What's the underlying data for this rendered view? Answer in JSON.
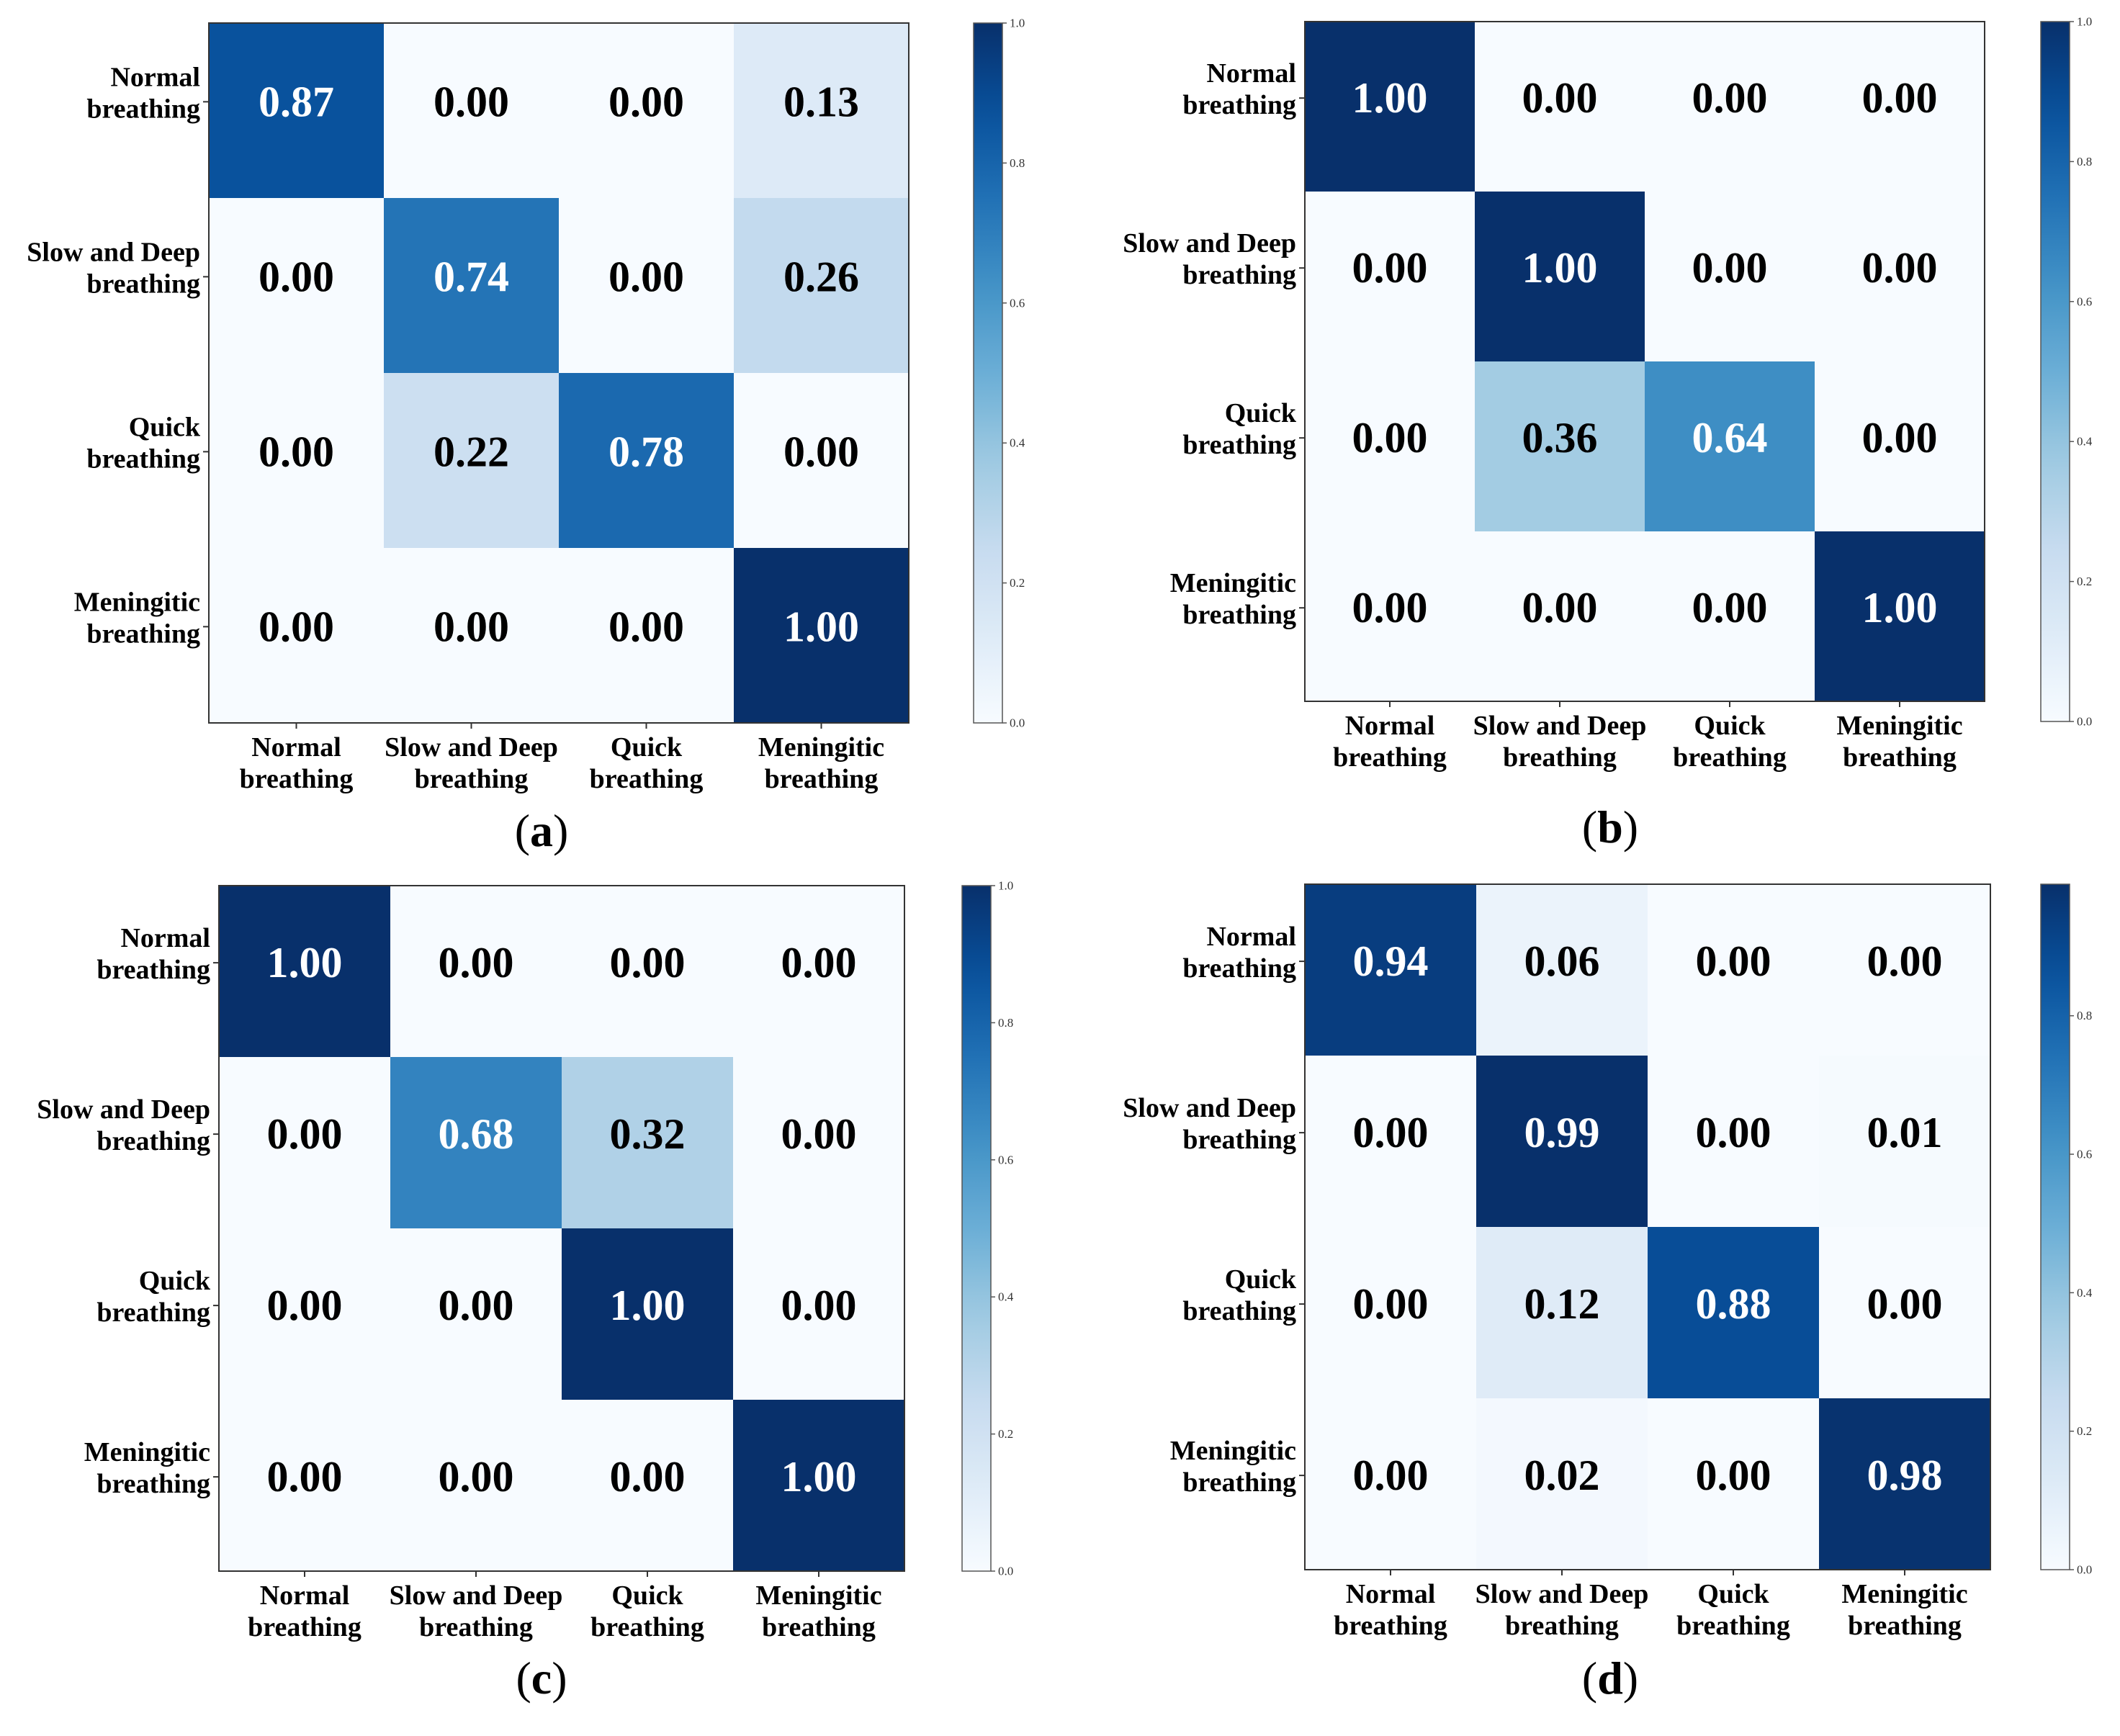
{
  "figure": {
    "colormap": "Blues",
    "colormap_stops": [
      "#f7fbff",
      "#deebf7",
      "#c6dbef",
      "#9ecae1",
      "#6baed6",
      "#4292c6",
      "#2171b5",
      "#08519c",
      "#08306b"
    ],
    "text_dark": "#000000",
    "text_light": "#ffffff"
  },
  "chart_data": [
    {
      "type": "heatmap",
      "panel_label": "a",
      "class_labels": [
        [
          "Normal",
          "breathing"
        ],
        [
          "Slow and Deep",
          "breathing"
        ],
        [
          "Quick",
          "breathing"
        ],
        [
          "Meningitic",
          "breathing"
        ]
      ],
      "matrix": [
        [
          0.87,
          0.0,
          0.0,
          0.13
        ],
        [
          0.0,
          0.74,
          0.0,
          0.26
        ],
        [
          0.0,
          0.22,
          0.78,
          0.0
        ],
        [
          0.0,
          0.0,
          0.0,
          1.0
        ]
      ],
      "colorbar": {
        "vmin": 0.0,
        "vmax": 1.0,
        "ticks": [
          0.0,
          0.2,
          0.4,
          0.6,
          0.8,
          1.0
        ],
        "tick_labels": [
          "0.0",
          "0.2",
          "0.4",
          "0.6",
          "0.8",
          "1.0"
        ]
      }
    },
    {
      "type": "heatmap",
      "panel_label": "b",
      "class_labels": [
        [
          "Normal",
          "breathing"
        ],
        [
          "Slow and Deep",
          "breathing"
        ],
        [
          "Quick",
          "breathing"
        ],
        [
          "Meningitic",
          "breathing"
        ]
      ],
      "matrix": [
        [
          1.0,
          0.0,
          0.0,
          0.0
        ],
        [
          0.0,
          1.0,
          0.0,
          0.0
        ],
        [
          0.0,
          0.36,
          0.64,
          0.0
        ],
        [
          0.0,
          0.0,
          0.0,
          1.0
        ]
      ],
      "colorbar": {
        "vmin": 0.0,
        "vmax": 1.0,
        "ticks": [
          0.0,
          0.2,
          0.4,
          0.6,
          0.8,
          1.0
        ],
        "tick_labels": [
          "0.0",
          "0.2",
          "0.4",
          "0.6",
          "0.8",
          "1.0"
        ]
      }
    },
    {
      "type": "heatmap",
      "panel_label": "c",
      "class_labels": [
        [
          "Normal",
          "breathing"
        ],
        [
          "Slow and Deep",
          "breathing"
        ],
        [
          "Quick",
          "breathing"
        ],
        [
          "Meningitic",
          "breathing"
        ]
      ],
      "matrix": [
        [
          1.0,
          0.0,
          0.0,
          0.0
        ],
        [
          0.0,
          0.68,
          0.32,
          0.0
        ],
        [
          0.0,
          0.0,
          1.0,
          0.0
        ],
        [
          0.0,
          0.0,
          0.0,
          1.0
        ]
      ],
      "colorbar": {
        "vmin": 0.0,
        "vmax": 1.0,
        "ticks": [
          0.0,
          0.2,
          0.4,
          0.6,
          0.8,
          1.0
        ],
        "tick_labels": [
          "0.0",
          "0.2",
          "0.4",
          "0.6",
          "0.8",
          "1.0"
        ]
      }
    },
    {
      "type": "heatmap",
      "panel_label": "d",
      "class_labels": [
        [
          "Normal",
          "breathing"
        ],
        [
          "Slow and Deep",
          "breathing"
        ],
        [
          "Quick",
          "breathing"
        ],
        [
          "Meningitic",
          "breathing"
        ]
      ],
      "matrix": [
        [
          0.94,
          0.06,
          0.0,
          0.0
        ],
        [
          0.0,
          0.99,
          0.0,
          0.01
        ],
        [
          0.0,
          0.12,
          0.88,
          0.0
        ],
        [
          0.0,
          0.02,
          0.0,
          0.98
        ]
      ],
      "colorbar": {
        "vmin": 0.0,
        "vmax": 0.99,
        "ticks": [
          0.0,
          0.2,
          0.4,
          0.6,
          0.8
        ],
        "tick_labels": [
          "0.0",
          "0.2",
          "0.4",
          "0.6",
          "0.8"
        ]
      }
    }
  ]
}
